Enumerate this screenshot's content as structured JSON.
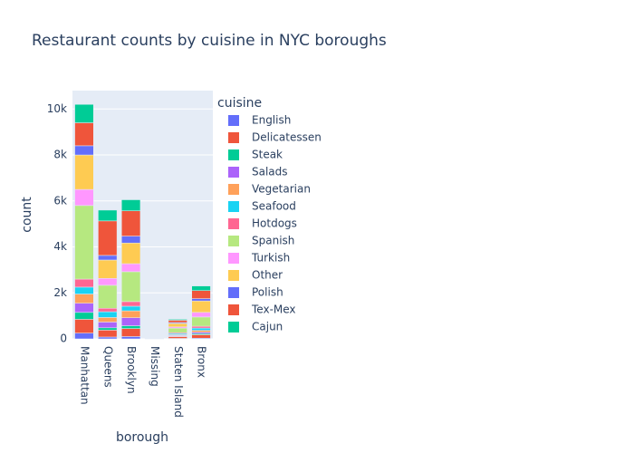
{
  "chart_data": {
    "type": "stacked_bar",
    "title": "Restaurant counts by cuisine in NYC boroughs",
    "x_label": "borough",
    "y_label": "count",
    "legend_title": "cuisine",
    "categories": [
      "Manhattan",
      "Queens",
      "Brooklyn",
      "Missing",
      "Staten Island",
      "Bronx"
    ],
    "series": [
      {
        "name": "English",
        "color": "#636efa",
        "values": [
          250,
          80,
          100,
          0,
          20,
          30
        ]
      },
      {
        "name": "Delicatessen",
        "color": "#EF553B",
        "values": [
          600,
          300,
          350,
          0,
          80,
          150
        ]
      },
      {
        "name": "Steak",
        "color": "#00cc96",
        "values": [
          300,
          100,
          120,
          0,
          20,
          50
        ]
      },
      {
        "name": "Salads",
        "color": "#ab63fa",
        "values": [
          400,
          250,
          350,
          0,
          30,
          60
        ]
      },
      {
        "name": "Vegetarian",
        "color": "#FFA15A",
        "values": [
          400,
          200,
          300,
          0,
          30,
          80
        ]
      },
      {
        "name": "Seafood",
        "color": "#19d3f3",
        "values": [
          300,
          250,
          200,
          0,
          50,
          100
        ]
      },
      {
        "name": "Hotdogs",
        "color": "#FF6692",
        "values": [
          350,
          150,
          200,
          0,
          40,
          80
        ]
      },
      {
        "name": "Spanish",
        "color": "#B6E880",
        "values": [
          3200,
          1000,
          1300,
          5,
          200,
          400
        ]
      },
      {
        "name": "Turkish",
        "color": "#FF97FF",
        "values": [
          700,
          300,
          350,
          0,
          50,
          200
        ]
      },
      {
        "name": "Other",
        "color": "#FECB52",
        "values": [
          1500,
          800,
          900,
          0,
          150,
          500
        ]
      },
      {
        "name": "Polish",
        "color": "#636efa",
        "values": [
          400,
          200,
          300,
          0,
          40,
          100
        ]
      },
      {
        "name": "Tex-Mex",
        "color": "#EF553B",
        "values": [
          1000,
          1500,
          1100,
          5,
          100,
          350
        ]
      },
      {
        "name": "Cajun",
        "color": "#00cc96",
        "values": [
          800,
          470,
          480,
          0,
          40,
          200
        ]
      }
    ],
    "ylim": [
      0,
      10800
    ],
    "yticks": [
      0,
      {
        "value": 2000,
        "label": "2k"
      },
      {
        "value": 4000,
        "label": "4k"
      },
      {
        "value": 6000,
        "label": "6k"
      },
      {
        "value": 8000,
        "label": "8k"
      },
      {
        "value": 10000,
        "label": "10k"
      }
    ],
    "grid": true
  }
}
